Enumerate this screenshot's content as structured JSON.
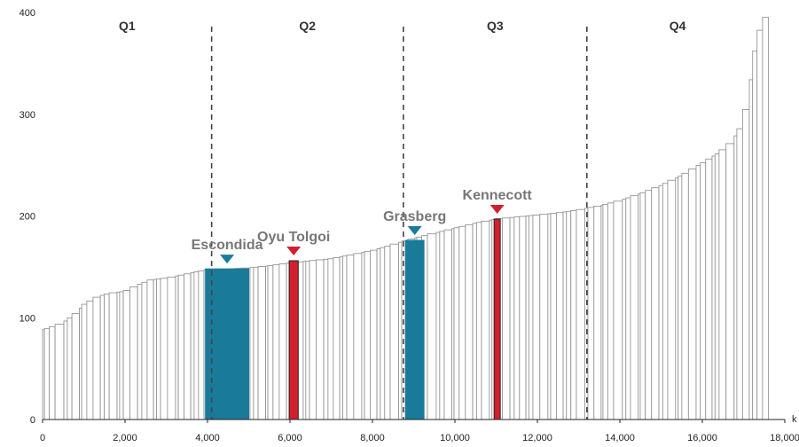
{
  "chart_data": {
    "type": "bar",
    "subtype": "cost-curve",
    "title": "",
    "xlabel": "k",
    "ylabel": "",
    "xlim": [
      0,
      18000
    ],
    "ylim": [
      0,
      400
    ],
    "x_ticks": [
      "0",
      "2,000",
      "4,000",
      "6,000",
      "8,000",
      "10,000",
      "12,000",
      "14,000",
      "16,000",
      "18,000"
    ],
    "x_tick_values": [
      0,
      2000,
      4000,
      6000,
      8000,
      10000,
      12000,
      14000,
      16000,
      18000
    ],
    "y_ticks": [
      "0",
      "100",
      "200",
      "300",
      "400"
    ],
    "y_tick_values": [
      0,
      100,
      200,
      300,
      400
    ],
    "grid": false,
    "bar_fill": "#ffffff",
    "bar_stroke": "#8a8a8a",
    "quartiles": [
      {
        "label": "Q1",
        "x_start": 0,
        "x_end": 4100
      },
      {
        "label": "Q2",
        "x_start": 4100,
        "x_end": 8750
      },
      {
        "label": "Q3",
        "x_start": 8750,
        "x_end": 13200
      },
      {
        "label": "Q4",
        "x_start": 13200,
        "x_end": 17600
      }
    ],
    "quartile_boundaries": [
      4100,
      8750,
      13200
    ],
    "highlights": [
      {
        "label": "Escondida",
        "x_start": 3950,
        "x_end": 5000,
        "y": 148,
        "color": "#1a7a9a"
      },
      {
        "label": "Oyu Tolgoi",
        "x_start": 5980,
        "x_end": 6200,
        "y": 156,
        "color": "#d0202e"
      },
      {
        "label": "Grasberg",
        "x_start": 8800,
        "x_end": 9250,
        "y": 176,
        "color": "#1a7a9a"
      },
      {
        "label": "Kennecott",
        "x_start": 10950,
        "x_end": 11100,
        "y": 197,
        "color": "#d0202e"
      }
    ],
    "curve_points": [
      [
        0,
        88
      ],
      [
        500,
        95
      ],
      [
        800,
        104
      ],
      [
        1000,
        113
      ],
      [
        1300,
        120
      ],
      [
        1600,
        124
      ],
      [
        2000,
        126
      ],
      [
        2300,
        132
      ],
      [
        2600,
        137
      ],
      [
        3000,
        139
      ],
      [
        3500,
        143
      ],
      [
        3950,
        147
      ],
      [
        4500,
        148
      ],
      [
        5000,
        149
      ],
      [
        5500,
        151
      ],
      [
        6000,
        154
      ],
      [
        6500,
        156
      ],
      [
        7000,
        158
      ],
      [
        7500,
        162
      ],
      [
        8000,
        166
      ],
      [
        8500,
        172
      ],
      [
        9000,
        178
      ],
      [
        9500,
        183
      ],
      [
        10000,
        188
      ],
      [
        10500,
        193
      ],
      [
        11000,
        197
      ],
      [
        11500,
        199
      ],
      [
        12000,
        201
      ],
      [
        12500,
        203
      ],
      [
        13000,
        206
      ],
      [
        13500,
        210
      ],
      [
        14000,
        215
      ],
      [
        14500,
        222
      ],
      [
        15000,
        230
      ],
      [
        15500,
        240
      ],
      [
        16000,
        252
      ],
      [
        16400,
        262
      ],
      [
        16700,
        272
      ],
      [
        16900,
        285
      ],
      [
        17100,
        310
      ],
      [
        17300,
        370
      ],
      [
        17450,
        390
      ],
      [
        17600,
        400
      ]
    ]
  }
}
